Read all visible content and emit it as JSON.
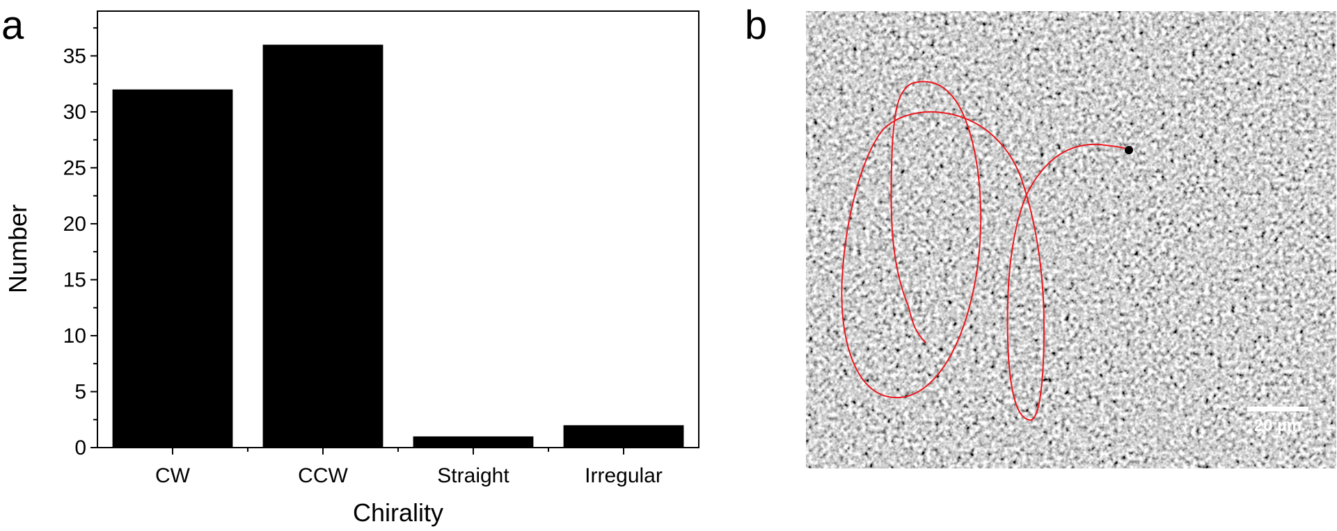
{
  "panel_labels": {
    "a": "a",
    "b": "b"
  },
  "chart_data": {
    "type": "bar",
    "title": "",
    "categories": [
      "CW",
      "CCW",
      "Straight",
      "Irregular"
    ],
    "values": [
      32,
      36,
      1,
      2
    ],
    "xlabel": "Chirality",
    "ylabel": "Number",
    "ylim": [
      0,
      39
    ],
    "yticks": [
      0,
      5,
      10,
      15,
      20,
      25,
      30,
      35
    ],
    "ytick_labels": [
      "0",
      "5",
      "10",
      "15",
      "20",
      "25",
      "30",
      "35"
    ],
    "bar_color": "#000000",
    "grid": false
  },
  "micrograph": {
    "scale_bar_label": "20 µm",
    "trajectory_color": "#e8191f",
    "marker_color": "#000000",
    "bar_color": "#ffffff"
  }
}
